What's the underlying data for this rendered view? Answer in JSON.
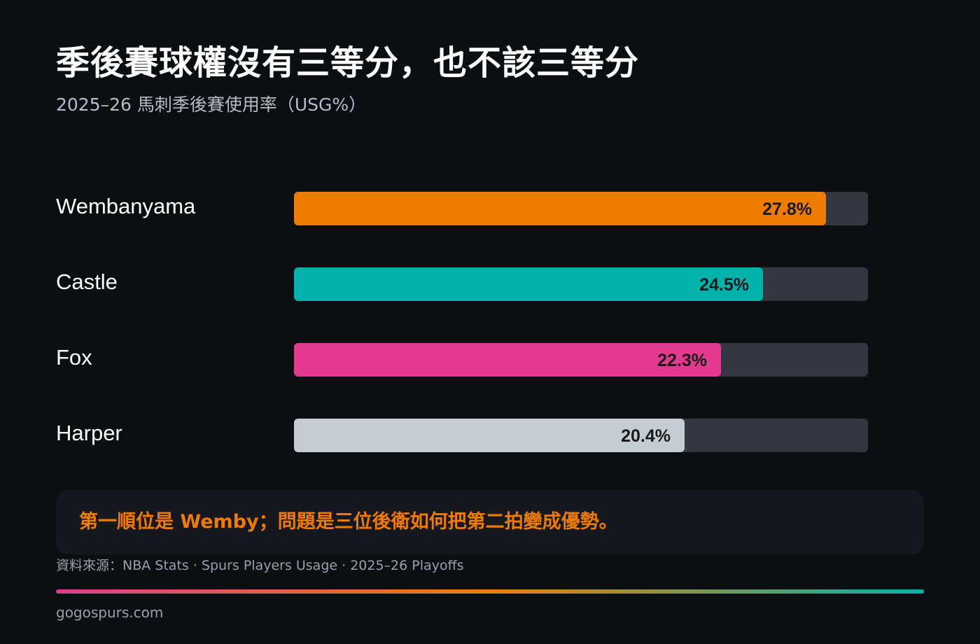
{
  "header": {
    "title": "季後賽球權沒有三等分，也不該三等分",
    "subtitle": "2025–26 馬刺季後賽使用率（USG%）"
  },
  "chart_data": {
    "type": "bar",
    "orientation": "horizontal",
    "categories": [
      "Wembanyama",
      "Castle",
      "Fox",
      "Harper"
    ],
    "values": [
      27.8,
      24.5,
      22.3,
      20.4
    ],
    "value_labels": [
      "27.8%",
      "24.5%",
      "22.3%",
      "20.4%"
    ],
    "bar_colors": [
      "#ef7c00",
      "#00b2a9",
      "#e3398e",
      "#c5cdd3"
    ],
    "track_color": "#34373f",
    "xlim": [
      0,
      30
    ],
    "grid": false,
    "title": "季後賽球權沒有三等分，也不該三等分",
    "subtitle": "2025–26 馬刺季後賽使用率（USG%）",
    "xlabel": "",
    "ylabel": ""
  },
  "callout": {
    "text": "第一順位是 Wemby；問題是三位後衛如何把第二拍變成優勢。"
  },
  "footer": {
    "source": "資料來源：NBA Stats · Spurs Players Usage · 2025–26 Playoffs",
    "site": "gogospurs.com"
  },
  "colors": {
    "background": "#0d0e11",
    "accent": "#ef7c00",
    "gradient": [
      "#e3398e",
      "#ef7c00",
      "#00b2a9"
    ]
  }
}
